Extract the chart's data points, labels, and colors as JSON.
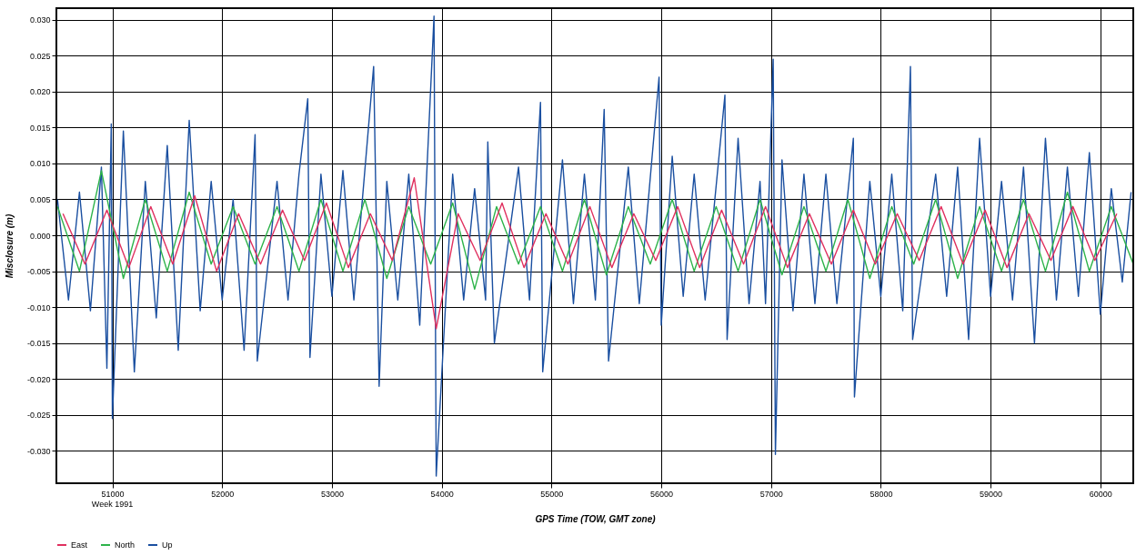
{
  "chart_data": {
    "type": "line",
    "xlabel": "GPS Time (TOW, GMT zone)",
    "ylabel": "Misclosure (m)",
    "xlim": [
      50490,
      60300
    ],
    "ylim": [
      -0.0345,
      0.0316
    ],
    "annotations": [
      "Week 1991"
    ],
    "xticks": [
      51000,
      52000,
      53000,
      54000,
      55000,
      56000,
      57000,
      58000,
      59000,
      60000
    ],
    "yticks": [
      {
        "value": -0.03,
        "label": "-0.030"
      },
      {
        "value": -0.025,
        "label": "-0.025"
      },
      {
        "value": -0.02,
        "label": "-0.020"
      },
      {
        "value": -0.015,
        "label": "-0.015"
      },
      {
        "value": -0.01,
        "label": "-0.010"
      },
      {
        "value": -0.005,
        "label": "-0.005"
      },
      {
        "value": 0,
        "label": "0.000"
      },
      {
        "value": 0.005,
        "label": "0.005"
      },
      {
        "value": 0.01,
        "label": "0.010"
      },
      {
        "value": 0.015,
        "label": "0.015"
      },
      {
        "value": 0.02,
        "label": "0.020"
      },
      {
        "value": 0.025,
        "label": "0.025"
      },
      {
        "value": 0.03,
        "label": "0.030"
      }
    ],
    "grid": true,
    "legend": "bottom",
    "marker": "none",
    "line_style": "solid",
    "series": [
      {
        "name": "East",
        "color": "#e0305f",
        "x": [
          50550,
          50750,
          50950,
          51150,
          51350,
          51550,
          51750,
          51950,
          52150,
          52350,
          52550,
          52750,
          52950,
          53150,
          53350,
          53550,
          53750,
          53950,
          54150,
          54350,
          54550,
          54750,
          54950,
          55150,
          55350,
          55550,
          55750,
          55950,
          56150,
          56350,
          56550,
          56750,
          56950,
          57150,
          57350,
          57550,
          57750,
          57950,
          58150,
          58350,
          58550,
          58750,
          58950,
          59150,
          59350,
          59550,
          59750,
          59950,
          60150
        ],
        "values": [
          0.003,
          -0.004,
          0.0035,
          -0.0045,
          0.004,
          -0.004,
          0.0055,
          -0.005,
          0.003,
          -0.004,
          0.0035,
          -0.0035,
          0.0045,
          -0.0045,
          0.003,
          -0.0035,
          0.008,
          -0.013,
          0.003,
          -0.0035,
          0.0045,
          -0.0045,
          0.003,
          -0.004,
          0.004,
          -0.0045,
          0.003,
          -0.0035,
          0.004,
          -0.0045,
          0.0035,
          -0.004,
          0.004,
          -0.0045,
          0.003,
          -0.004,
          0.0035,
          -0.004,
          0.003,
          -0.0035,
          0.004,
          -0.004,
          0.0035,
          -0.0045,
          0.003,
          -0.0035,
          0.004,
          -0.0035,
          0.003
        ]
      },
      {
        "name": "North",
        "color": "#2db34a",
        "x": [
          50500,
          50700,
          50900,
          51100,
          51300,
          51500,
          51700,
          51900,
          52100,
          52300,
          52500,
          52700,
          52900,
          53100,
          53300,
          53500,
          53700,
          53900,
          54100,
          54300,
          54500,
          54700,
          54900,
          55100,
          55300,
          55500,
          55700,
          55900,
          56100,
          56300,
          56500,
          56700,
          56900,
          57100,
          57300,
          57500,
          57700,
          57900,
          58100,
          58300,
          58500,
          58700,
          58900,
          59100,
          59300,
          59500,
          59700,
          59900,
          60100,
          60300
        ],
        "values": [
          0.004,
          -0.005,
          0.009,
          -0.006,
          0.005,
          -0.005,
          0.006,
          -0.004,
          0.004,
          -0.004,
          0.004,
          -0.005,
          0.005,
          -0.005,
          0.005,
          -0.006,
          0.004,
          -0.004,
          0.0045,
          -0.0075,
          0.004,
          -0.004,
          0.004,
          -0.005,
          0.005,
          -0.0055,
          0.004,
          -0.004,
          0.005,
          -0.005,
          0.004,
          -0.005,
          0.005,
          -0.0055,
          0.004,
          -0.005,
          0.005,
          -0.006,
          0.004,
          -0.004,
          0.005,
          -0.006,
          0.004,
          -0.005,
          0.005,
          -0.005,
          0.006,
          -0.005,
          0.004,
          -0.004
        ]
      },
      {
        "name": "Up",
        "color": "#1a4fa0",
        "x": [
          50500,
          50600,
          50700,
          50800,
          50900,
          50950,
          50990,
          51000,
          51100,
          51200,
          51300,
          51400,
          51500,
          51600,
          51700,
          51800,
          51900,
          52000,
          52100,
          52200,
          52300,
          52320,
          52500,
          52600,
          52700,
          52780,
          52800,
          52900,
          53000,
          53100,
          53200,
          53380,
          53430,
          53500,
          53600,
          53700,
          53800,
          53930,
          53950,
          54100,
          54200,
          54300,
          54400,
          54420,
          54480,
          54700,
          54800,
          54900,
          54920,
          55100,
          55200,
          55300,
          55400,
          55480,
          55520,
          55700,
          55800,
          55980,
          56000,
          56100,
          56200,
          56300,
          56400,
          56580,
          56600,
          56700,
          56800,
          56900,
          56950,
          57020,
          57040,
          57100,
          57200,
          57300,
          57400,
          57500,
          57600,
          57750,
          57760,
          57900,
          58000,
          58100,
          58200,
          58270,
          58290,
          58500,
          58600,
          58700,
          58800,
          58900,
          59000,
          59100,
          59200,
          59300,
          59400,
          59500,
          59600,
          59700,
          59800,
          59900,
          60000,
          60100,
          60200,
          60280
        ],
        "values": [
          0.005,
          -0.009,
          0.006,
          -0.0105,
          0.0095,
          -0.0185,
          0.0155,
          -0.0255,
          0.0145,
          -0.019,
          0.0075,
          -0.0115,
          0.0125,
          -0.016,
          0.016,
          -0.0105,
          0.0075,
          -0.009,
          0.005,
          -0.016,
          0.014,
          -0.0175,
          0.0075,
          -0.009,
          0.0085,
          0.019,
          -0.017,
          0.0085,
          -0.0085,
          0.009,
          -0.009,
          0.0235,
          -0.021,
          0.0075,
          -0.009,
          0.0085,
          -0.0125,
          0.0305,
          -0.0335,
          0.0085,
          -0.009,
          0.0065,
          -0.009,
          0.013,
          -0.015,
          0.0095,
          -0.009,
          0.0185,
          -0.019,
          0.0105,
          -0.0095,
          0.0085,
          -0.009,
          0.0175,
          -0.0175,
          0.0095,
          -0.0095,
          0.022,
          -0.0125,
          0.011,
          -0.0085,
          0.0085,
          -0.009,
          0.0195,
          -0.0145,
          0.0135,
          -0.0095,
          0.0075,
          -0.0095,
          0.0245,
          -0.0305,
          0.0105,
          -0.0105,
          0.0085,
          -0.0095,
          0.0085,
          -0.0095,
          0.0135,
          -0.0225,
          0.0075,
          -0.0085,
          0.0085,
          -0.0105,
          0.0235,
          -0.0145,
          0.0085,
          -0.0085,
          0.0095,
          -0.0145,
          0.0135,
          -0.0085,
          0.0075,
          -0.009,
          0.0095,
          -0.015,
          0.0135,
          -0.009,
          0.0095,
          -0.0085,
          0.0115,
          -0.011,
          0.0065,
          -0.0065,
          0.006
        ]
      }
    ]
  }
}
